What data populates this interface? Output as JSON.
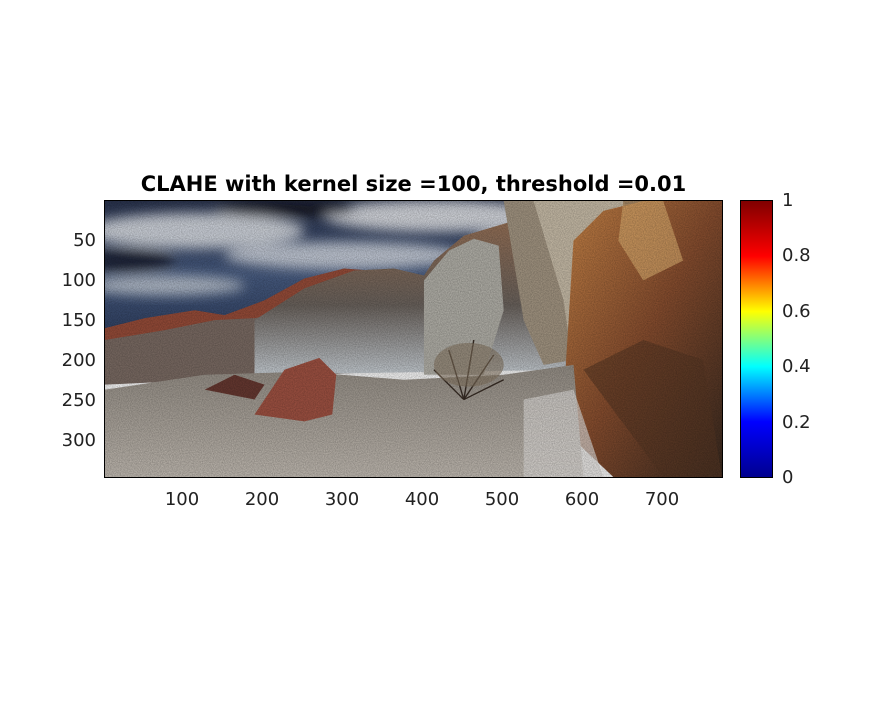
{
  "title": "CLAHE with kernel size =100, threshold =0.01",
  "axes": {
    "y_ticks": [
      "50",
      "100",
      "150",
      "200",
      "250",
      "300"
    ],
    "x_ticks": [
      "100",
      "200",
      "300",
      "400",
      "500",
      "600",
      "700"
    ]
  },
  "image": {
    "description_icon": "landscape-photo-icon",
    "colors": {
      "sky_dark": "#1e2a44",
      "sky_cloud": "#e6eaf0",
      "rock_red": "#9a4a32",
      "rock_orange": "#c07a3e",
      "rock_grey": "#8d8f8c",
      "ground": "#b9b3aa"
    }
  },
  "colorbar": {
    "labels": [
      "1",
      "0.8",
      "0.6",
      "0.4",
      "0.2",
      "0"
    ],
    "colormap": "jet",
    "colors": [
      "#800000",
      "#ff0000",
      "#ffff00",
      "#00ffff",
      "#0000ff",
      "#00008f"
    ]
  }
}
